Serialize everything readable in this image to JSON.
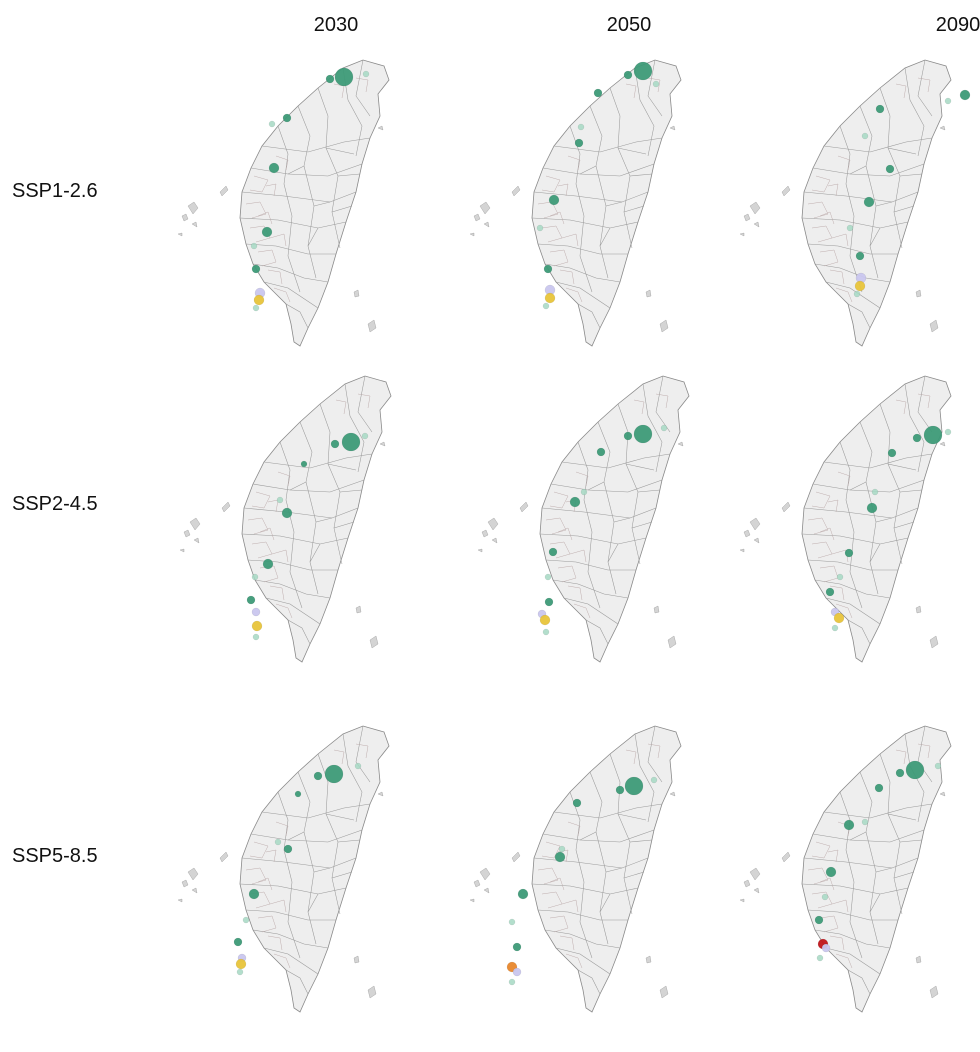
{
  "columns": [
    {
      "label": "2030"
    },
    {
      "label": "2050"
    },
    {
      "label": "2090"
    }
  ],
  "rows": [
    {
      "label": "SSP1-2.6"
    },
    {
      "label": "SSP2-4.5"
    },
    {
      "label": "SSP5-8.5"
    }
  ],
  "colors": {
    "island_fill": "#eeeeee",
    "border": "#9a9a9a",
    "green_dark": "#3d9a77",
    "green_light": "#a6d8c3",
    "yellow": "#e8c43a",
    "orange": "#e8872c",
    "red": "#c0141a",
    "lavender": "#c9c6ee"
  }
}
